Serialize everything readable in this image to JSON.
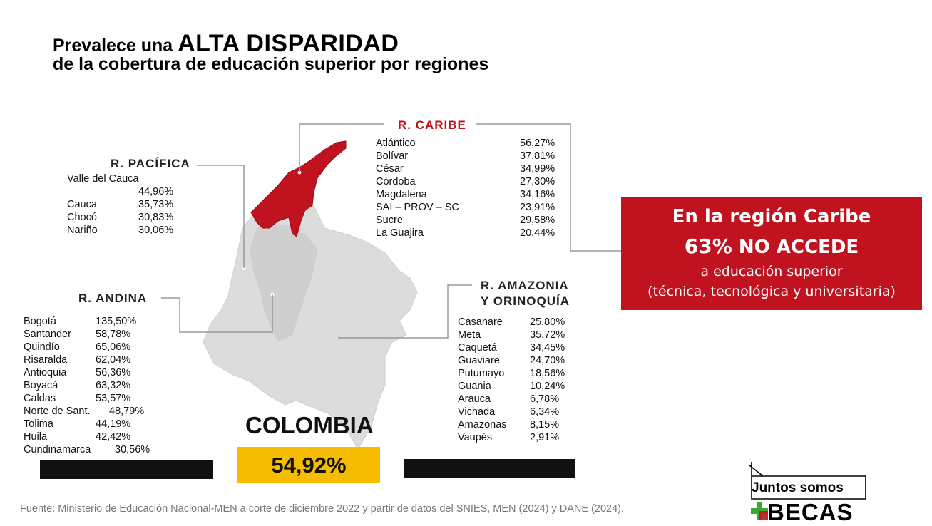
{
  "title": {
    "line1_prefix": "Prevalece una",
    "line1_emphasis": "ALTA DISPARIDAD",
    "line2": "de la cobertura de educación superior por regiones"
  },
  "regions": {
    "caribe": {
      "label": "R. CARIBE",
      "items": [
        {
          "name": "Atlántico",
          "value": "56,27%"
        },
        {
          "name": "Bolívar",
          "value": "37,81%"
        },
        {
          "name": "César",
          "value": "34,99%"
        },
        {
          "name": "Córdoba",
          "value": "27,30%"
        },
        {
          "name": "Magdalena",
          "value": "34,16%"
        },
        {
          "name": "SAI – PROV – SC",
          "value": "23,91%"
        },
        {
          "name": "Sucre",
          "value": "29,58%"
        },
        {
          "name": "La Guajira",
          "value": "20,44%"
        }
      ]
    },
    "pacifica": {
      "label": "R. PACÍFICA",
      "items": [
        {
          "name": "Valle del Cauca",
          "value": "44,96%"
        },
        {
          "name": "Cauca",
          "value": "35,73%"
        },
        {
          "name": "Chocó",
          "value": "30,83%"
        },
        {
          "name": "Nariño",
          "value": "30,06%"
        }
      ]
    },
    "andina": {
      "label": "R. ANDINA",
      "items": [
        {
          "name": "Bogotá",
          "value": "135,50%"
        },
        {
          "name": "Santander",
          "value": "58,78%"
        },
        {
          "name": "Quindío",
          "value": "65,06%"
        },
        {
          "name": "Risaralda",
          "value": "62,04%"
        },
        {
          "name": "Antioquia",
          "value": "56,36%"
        },
        {
          "name": "Boyacá",
          "value": "63,32%"
        },
        {
          "name": "Caldas",
          "value": "53,57%"
        },
        {
          "name": "Norte de Sant.",
          "value": "48,79%"
        },
        {
          "name": "Tolima",
          "value": "44,19%"
        },
        {
          "name": "Huila",
          "value": "42,42%"
        },
        {
          "name": "Cundinamarca",
          "value": "30,56%"
        }
      ]
    },
    "amazonia": {
      "label_line1": "R. AMAZONIA",
      "label_line2": "Y ORINOQUÍA",
      "items": [
        {
          "name": "Casanare",
          "value": "25,80%"
        },
        {
          "name": "Meta",
          "value": "35,72%"
        },
        {
          "name": "Caquetá",
          "value": "34,45%"
        },
        {
          "name": "Guaviare",
          "value": "24,70%"
        },
        {
          "name": "Putumayo",
          "value": "18,56%"
        },
        {
          "name": "Guania",
          "value": "10,24%"
        },
        {
          "name": "Arauca",
          "value": "6,78%"
        },
        {
          "name": "Vichada",
          "value": "6,34%"
        },
        {
          "name": "Amazonas",
          "value": "8,15%"
        },
        {
          "name": "Vaupés",
          "value": "2,91%"
        }
      ]
    }
  },
  "callout": {
    "line1": "En la región Caribe",
    "pct": "63%",
    "line2_rest": "NO ACCEDE",
    "line3": "a educación superior",
    "line4": "(técnica, tecnológica y universitaria)"
  },
  "country": {
    "name": "COLOMBIA",
    "value": "54,92%"
  },
  "source": "Fuente: Ministerio de Educación Nacional-MEN a corte de diciembre 2022 y partir de datos del SNIES, MEN (2024) y DANE (2024).",
  "logo": {
    "line1": "Juntos somos",
    "line2": "BECAS"
  },
  "colors": {
    "caribe_red": "#c1121f",
    "map_gray": "#dcdcdc",
    "highlight_yellow": "#f6bd00",
    "logo_green": "#3aa935"
  }
}
